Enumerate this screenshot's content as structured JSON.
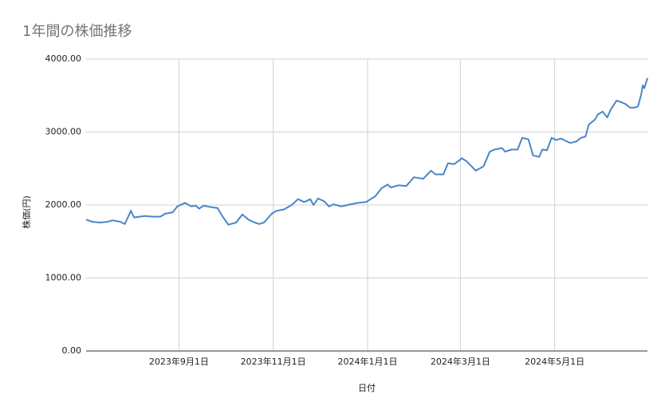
{
  "chart_data": {
    "type": "line",
    "title": "1年間の株価推移",
    "x_label": "日付",
    "y_label": "株価(円)",
    "x": [
      "2023-07-03",
      "2023-07-07",
      "2023-07-12",
      "2023-07-17",
      "2023-07-20",
      "2023-07-25",
      "2023-07-28",
      "2023-08-01",
      "2023-08-03",
      "2023-08-10",
      "2023-08-15",
      "2023-08-20",
      "2023-08-23",
      "2023-08-28",
      "2023-08-31",
      "2023-09-05",
      "2023-09-09",
      "2023-09-12",
      "2023-09-14",
      "2023-09-17",
      "2023-09-22",
      "2023-09-26",
      "2023-09-29",
      "2023-10-03",
      "2023-10-08",
      "2023-10-12",
      "2023-10-16",
      "2023-10-20",
      "2023-10-23",
      "2023-10-26",
      "2023-10-31",
      "2023-11-03",
      "2023-11-08",
      "2023-11-13",
      "2023-11-17",
      "2023-11-21",
      "2023-11-25",
      "2023-11-27",
      "2023-11-30",
      "2023-12-04",
      "2023-12-07",
      "2023-12-10",
      "2023-12-15",
      "2023-12-21",
      "2023-12-26",
      "2023-12-31",
      "2024-01-06",
      "2024-01-10",
      "2024-01-14",
      "2024-01-16",
      "2024-01-21",
      "2024-01-26",
      "2024-01-31",
      "2024-02-06",
      "2024-02-11",
      "2024-02-14",
      "2024-02-19",
      "2024-02-22",
      "2024-02-26",
      "2024-03-02",
      "2024-03-05",
      "2024-03-11",
      "2024-03-16",
      "2024-03-20",
      "2024-03-23",
      "2024-03-28",
      "2024-03-30",
      "2024-04-03",
      "2024-04-07",
      "2024-04-10",
      "2024-04-14",
      "2024-04-17",
      "2024-04-21",
      "2024-04-23",
      "2024-04-26",
      "2024-04-29",
      "2024-05-02",
      "2024-05-05",
      "2024-05-09",
      "2024-05-11",
      "2024-05-15",
      "2024-05-18",
      "2024-05-21",
      "2024-05-23",
      "2024-05-27",
      "2024-05-29",
      "2024-06-01",
      "2024-06-04",
      "2024-06-06",
      "2024-06-10",
      "2024-06-13",
      "2024-06-16",
      "2024-06-19",
      "2024-06-23",
      "2024-06-24",
      "2024-06-26",
      "2024-06-27",
      "2024-06-28",
      "2024-06-30"
    ],
    "series": [
      {
        "name": "株価",
        "color": "#4a86c8",
        "values": [
          1800,
          1770,
          1760,
          1770,
          1790,
          1770,
          1740,
          1920,
          1830,
          1850,
          1840,
          1840,
          1880,
          1900,
          1980,
          2030,
          1980,
          1990,
          1950,
          1990,
          1970,
          1960,
          1850,
          1730,
          1760,
          1870,
          1800,
          1760,
          1740,
          1760,
          1880,
          1920,
          1940,
          2000,
          2080,
          2040,
          2080,
          2000,
          2090,
          2050,
          1980,
          2010,
          1980,
          2010,
          2030,
          2040,
          2120,
          2230,
          2280,
          2240,
          2270,
          2260,
          2380,
          2360,
          2470,
          2420,
          2420,
          2570,
          2560,
          2640,
          2600,
          2470,
          2530,
          2730,
          2760,
          2780,
          2730,
          2760,
          2760,
          2920,
          2900,
          2680,
          2660,
          2760,
          2750,
          2920,
          2890,
          2910,
          2870,
          2850,
          2870,
          2920,
          2940,
          3100,
          3170,
          3240,
          3280,
          3200,
          3300,
          3430,
          3410,
          3380,
          3330,
          3340,
          3360,
          3520,
          3640,
          3600,
          3740
        ]
      }
    ],
    "xlim": [
      "2023-07-03",
      "2024-06-30"
    ],
    "xticks": [
      {
        "value": "2023-09-01",
        "label": "2023年9月1日"
      },
      {
        "value": "2023-11-01",
        "label": "2023年11月1日"
      },
      {
        "value": "2024-01-01",
        "label": "2024年1月1日"
      },
      {
        "value": "2024-03-01",
        "label": "2024年3月1日"
      },
      {
        "value": "2024-05-01",
        "label": "2024年5月1日"
      }
    ],
    "ylim": [
      0,
      4000
    ],
    "yticks": [
      {
        "value": 0,
        "label": "0.00"
      },
      {
        "value": 1000,
        "label": "1000.00"
      },
      {
        "value": 2000,
        "label": "2000.00"
      },
      {
        "value": 3000,
        "label": "3000.00"
      },
      {
        "value": 4000,
        "label": "4000.00"
      }
    ],
    "grid": true
  }
}
